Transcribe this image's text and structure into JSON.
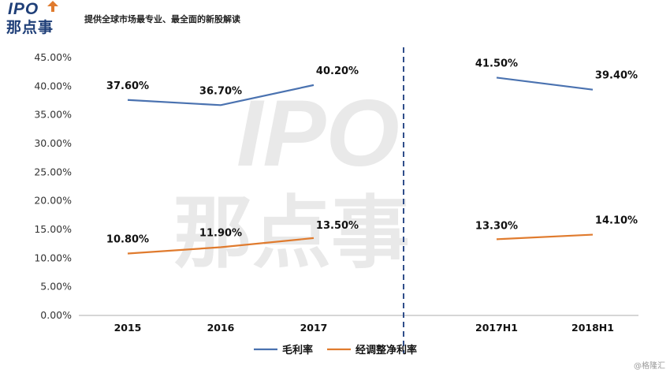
{
  "header": {
    "logo_ipo": "IPO",
    "logo_cn": "那点事",
    "tagline": "提供全球市场最专业、最全面的新股解读"
  },
  "watermark": {
    "ipo": "IPO",
    "cn": "那点事"
  },
  "corner_mark": "@格隆汇",
  "colors": {
    "gross": "#4a72b0",
    "net": "#e07b2e",
    "axis": "#bdbdbd",
    "divider": "#2f4d8a"
  },
  "chart_data": {
    "type": "line",
    "categories": [
      "2015",
      "2016",
      "2017",
      "2017H1",
      "2018H1"
    ],
    "segments": [
      [
        "2015",
        "2016",
        "2017"
      ],
      [
        "2017H1",
        "2018H1"
      ]
    ],
    "series": [
      {
        "name": "毛利率",
        "values": [
          37.6,
          36.7,
          40.2,
          41.5,
          39.4
        ],
        "labels": [
          "37.60%",
          "36.70%",
          "40.20%",
          "41.50%",
          "39.40%"
        ]
      },
      {
        "name": "经调整净利率",
        "values": [
          10.8,
          11.9,
          13.5,
          13.3,
          14.1
        ],
        "labels": [
          "10.80%",
          "11.90%",
          "13.50%",
          "13.30%",
          "14.10%"
        ]
      }
    ],
    "yticks": [
      "0.00%",
      "5.00%",
      "10.00%",
      "15.00%",
      "20.00%",
      "25.00%",
      "30.00%",
      "35.00%",
      "40.00%",
      "45.00%"
    ],
    "ylim": [
      0,
      45
    ],
    "xlabel": "",
    "ylabel": "",
    "title": "",
    "legend": "bottom-center"
  }
}
